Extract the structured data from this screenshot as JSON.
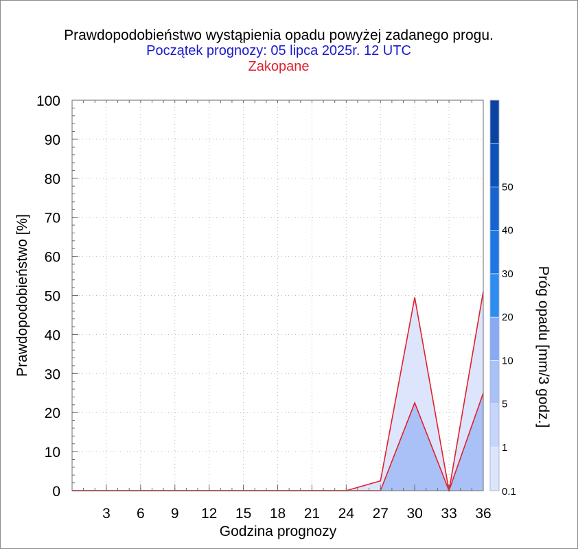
{
  "title": "Prawdopodobieństwo wystąpienia opadu powyżej zadanego progu.",
  "subtitle": "Początek prognozy: 05 lipca 2025r. 12 UTC",
  "location": "Zakopane",
  "colors": {
    "title": "#000000",
    "subtitle": "#1a1acc",
    "location": "#e21f2a",
    "series_line": "#e21f2a"
  },
  "chart_data": {
    "type": "area",
    "xlabel": "Godzina prognozy",
    "ylabel": "Prawdopodobieństwo [%]",
    "xlim": [
      0,
      36
    ],
    "ylim": [
      0,
      100
    ],
    "x": [
      0,
      3,
      6,
      9,
      12,
      15,
      18,
      21,
      24,
      27,
      30,
      33,
      36
    ],
    "x_tick_labels": [
      "3",
      "6",
      "9",
      "12",
      "15",
      "18",
      "21",
      "24",
      "27",
      "30",
      "33",
      "36"
    ],
    "y_tick_labels": [
      "0",
      "10",
      "20",
      "30",
      "40",
      "50",
      "60",
      "70",
      "80",
      "90",
      "100"
    ],
    "grid": true,
    "series": [
      {
        "threshold": "0.1",
        "color": "#dde5fd",
        "values": [
          0,
          0,
          0,
          0,
          0,
          0,
          0,
          0,
          0,
          2.5,
          49.5,
          0,
          51
        ]
      },
      {
        "threshold": "1",
        "color": "#a9c1f7",
        "values": [
          0,
          0,
          0,
          0,
          0,
          0,
          0,
          0,
          0,
          0,
          22.5,
          0,
          25
        ]
      }
    ],
    "colorbar": {
      "label": "Próg opadu [mm/3 godz.]",
      "labels": [
        "0.1",
        "1",
        "5",
        "10",
        "20",
        "30",
        "40",
        "50"
      ],
      "colors": [
        "#dde5fd",
        "#c5d5fb",
        "#a9c1f7",
        "#88aaf2",
        "#2d8cf0",
        "#1e76e2",
        "#1564d0",
        "#0d52b8",
        "#0b43a2"
      ]
    }
  }
}
